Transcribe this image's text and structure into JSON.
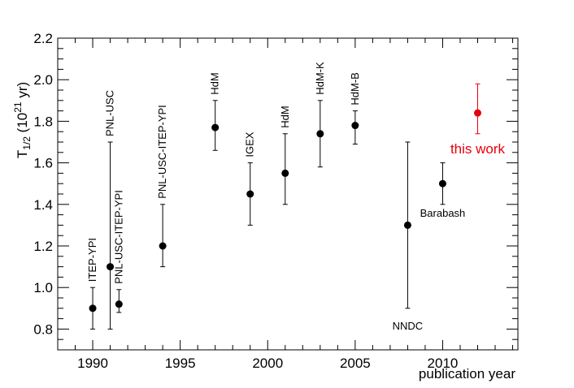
{
  "chart_data": {
    "type": "scatter",
    "ylabel_main": "T",
    "ylabel_sub": "1/2",
    "ylabel_rest": " (10",
    "ylabel_sup": "21",
    "ylabel_end": " yr)",
    "xlabel": "publication year",
    "xlim": [
      1988,
      2014.3
    ],
    "ylim": [
      0.7,
      2.2
    ],
    "xticks": [
      "1990",
      "1995",
      "2000",
      "2005",
      "2010"
    ],
    "yticks": [
      "0.8",
      "1.0",
      "1.2",
      "1.4",
      "1.6",
      "1.8",
      "2.0",
      "2.2"
    ],
    "grid": false,
    "highlight_color": "#e8000b",
    "points": [
      {
        "label": "ITEP-YPI",
        "x": 1990,
        "y": 0.9,
        "ylo": 0.8,
        "yhi": 1.0,
        "rot": true,
        "pos": "above"
      },
      {
        "label": "PNL-USC",
        "x": 1991,
        "y": 1.1,
        "ylo": 0.8,
        "yhi": 1.7,
        "rot": true,
        "pos": "above"
      },
      {
        "label": "PNL-USC-ITEP-YPI",
        "x": 1991.5,
        "y": 0.92,
        "ylo": 0.88,
        "yhi": 0.99,
        "rot": true,
        "pos": "above"
      },
      {
        "label": "PNL-USC-ITEP-YPI",
        "x": 1994,
        "y": 1.2,
        "ylo": 1.1,
        "yhi": 1.4,
        "rot": true,
        "pos": "above"
      },
      {
        "label": "HdM",
        "x": 1997,
        "y": 1.77,
        "ylo": 1.66,
        "yhi": 1.9,
        "rot": true,
        "pos": "above"
      },
      {
        "label": "IGEX",
        "x": 1999,
        "y": 1.45,
        "ylo": 1.3,
        "yhi": 1.6,
        "rot": true,
        "pos": "above"
      },
      {
        "label": "HdM",
        "x": 2001,
        "y": 1.55,
        "ylo": 1.4,
        "yhi": 1.74,
        "rot": true,
        "pos": "above"
      },
      {
        "label": "HdM-K",
        "x": 2003,
        "y": 1.74,
        "ylo": 1.58,
        "yhi": 1.9,
        "rot": true,
        "pos": "above"
      },
      {
        "label": "HdM-B",
        "x": 2005,
        "y": 1.78,
        "ylo": 1.69,
        "yhi": 1.85,
        "rot": true,
        "pos": "above"
      },
      {
        "label": "NNDC",
        "x": 2008,
        "y": 1.3,
        "ylo": 0.9,
        "yhi": 1.7,
        "rot": false,
        "pos": "below"
      },
      {
        "label": "Barabash",
        "x": 2010,
        "y": 1.5,
        "ylo": 1.4,
        "yhi": 1.6,
        "rot": false,
        "pos": "below"
      },
      {
        "label": "this work",
        "x": 2012,
        "y": 1.84,
        "ylo": 1.74,
        "yhi": 1.98,
        "rot": false,
        "pos": "below",
        "highlight": true
      }
    ]
  }
}
